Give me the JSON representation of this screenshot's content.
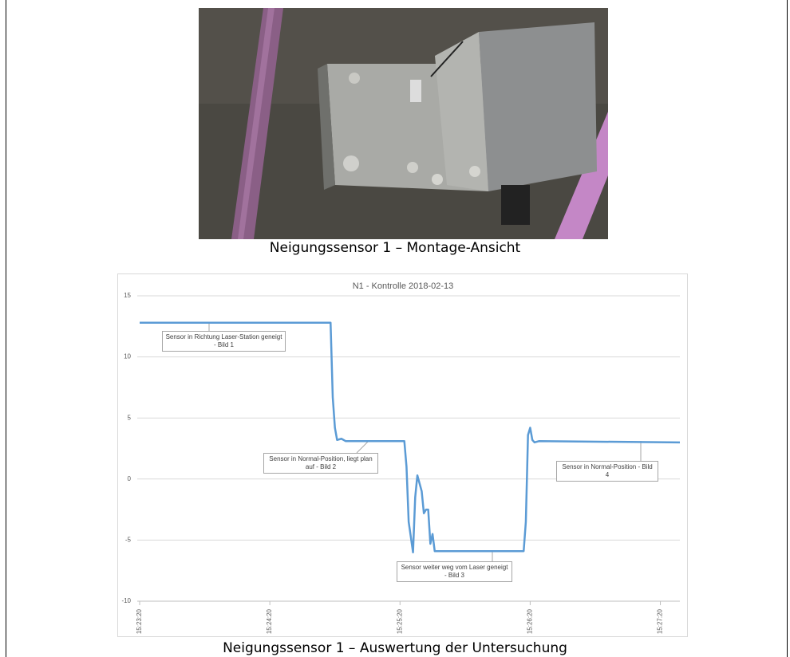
{
  "photo_caption": "Neigungssensor 1 – Montage-Ansicht",
  "chart_caption": "Neigungssensor 1 – Auswertung der Untersuchung",
  "chart_data": {
    "type": "line",
    "title": "N1 - Kontrolle 2018-02-13",
    "x": [
      "15:23:20",
      "15:24:48",
      "15:24:49",
      "15:24:50",
      "15:24:51",
      "15:24:53",
      "15:24:55",
      "15:25:22",
      "15:25:23",
      "15:25:24",
      "15:25:26",
      "15:25:27",
      "15:25:28",
      "15:25:30",
      "15:25:31",
      "15:25:32",
      "15:25:33",
      "15:25:34",
      "15:25:35",
      "15:25:36",
      "15:26:17",
      "15:26:18",
      "15:26:19",
      "15:26:20",
      "15:26:21",
      "15:26:22",
      "15:26:24",
      "15:27:29"
    ],
    "series": [
      {
        "color": "#5b9bd5",
        "values": [
          12.8,
          12.8,
          6.7,
          4.2,
          3.2,
          3.3,
          3.1,
          3.1,
          1.0,
          -3.5,
          -6.0,
          -1.5,
          0.3,
          -1.0,
          -2.8,
          -2.5,
          -2.5,
          -5.3,
          -4.5,
          -5.9,
          -5.9,
          -3.5,
          3.6,
          4.2,
          3.2,
          3.0,
          3.1,
          3.0
        ]
      }
    ],
    "xlim": [
      "15:23:20",
      "15:27:29"
    ],
    "xticks": [
      "15:23:20",
      "15:24:20",
      "15:25:20",
      "15:26:20",
      "15:27:20"
    ],
    "ylim": [
      -10,
      15
    ],
    "yticks": [
      -10,
      -5,
      0,
      5,
      10,
      15
    ],
    "grid": true,
    "annotations": [
      "Sensor in Richtung Laser-Station geneigt - Bild 1",
      "Sensor in Normal-Position, liegt plan auf - Bild 2",
      "Sensor weiter weg vom Laser geneigt - Bild 3",
      "Sensor in Normal-Position - Bild 4"
    ]
  }
}
